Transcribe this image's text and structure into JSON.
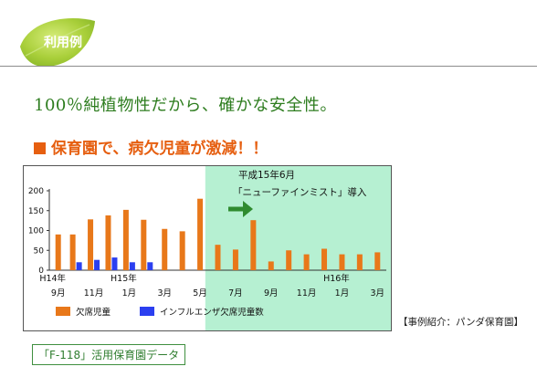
{
  "header": {
    "label": "利用例"
  },
  "headline": "100％純植物性だから、確かな安全性。",
  "section_title": "保育園で、病欠児童が激減！！",
  "source_note": "【事例紹介：パンダ保育園】",
  "data_tag": "「F-118」活用保育園データ",
  "colors": {
    "orange": "#e8781a",
    "blue": "#2b3ff0",
    "highlight": "#b6f0d2",
    "green": "#2e7d1f",
    "arrow": "#2f8b2f"
  },
  "chart_data": {
    "type": "bar",
    "title": "",
    "xlabel": "",
    "ylabel": "",
    "ylim": [
      0,
      200
    ],
    "y_ticks": [
      0,
      50,
      100,
      150,
      200
    ],
    "categories": [
      "H14/9月",
      "H14/10月",
      "H14/11月",
      "H14/12月",
      "H15/1月",
      "H15/2月",
      "H15/3月",
      "H15/4月",
      "H15/5月",
      "H15/6月",
      "H15/7月",
      "H15/8月",
      "H15/9月",
      "H15/10月",
      "H15/11月",
      "H15/12月",
      "H16/1月",
      "H16/2月",
      "H16/3月"
    ],
    "x_tick_labels": [
      {
        "index": 0,
        "label": "9月"
      },
      {
        "index": 2,
        "label": "11月"
      },
      {
        "index": 4,
        "label": "1月"
      },
      {
        "index": 6,
        "label": "3月"
      },
      {
        "index": 8,
        "label": "5月"
      },
      {
        "index": 10,
        "label": "7月"
      },
      {
        "index": 12,
        "label": "9月"
      },
      {
        "index": 14,
        "label": "11月"
      },
      {
        "index": 16,
        "label": "1月"
      },
      {
        "index": 18,
        "label": "3月"
      }
    ],
    "year_labels": [
      {
        "index": 0,
        "label": "H14年"
      },
      {
        "index": 4,
        "label": "H15年"
      },
      {
        "index": 16,
        "label": "H16年"
      }
    ],
    "series": [
      {
        "name": "欠席児童",
        "color": "#e8781a",
        "values": [
          90,
          90,
          128,
          138,
          152,
          127,
          104,
          98,
          180,
          64,
          52,
          126,
          22,
          50,
          40,
          54,
          40,
          40,
          45
        ]
      },
      {
        "name": "インフルエンザ欠席児童数",
        "color": "#2b3ff0",
        "values": [
          0,
          20,
          26,
          32,
          20,
          20,
          0,
          0,
          0,
          0,
          0,
          0,
          0,
          0,
          0,
          0,
          0,
          0,
          0
        ]
      }
    ],
    "highlight_from_index": 9,
    "annotation": {
      "line1": "平成15年6月",
      "line2": "「ニューファインミスト」導入"
    },
    "legend_position": "bottom-left",
    "grid": false
  }
}
